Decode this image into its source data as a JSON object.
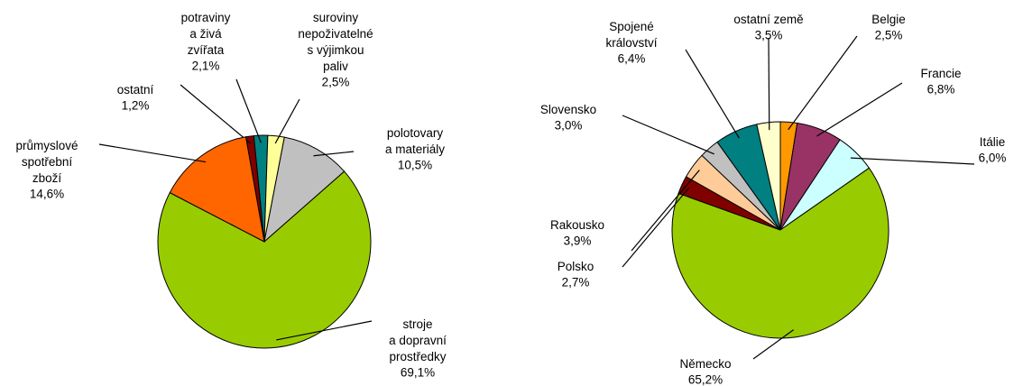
{
  "chart_data": [
    {
      "type": "pie",
      "categories": [
        "ostatní",
        "potraviny\na živá\nzvířata",
        "suroviny\nnepoživatelné\ns výjimkou\npaliv",
        "polotovary\na materiály",
        "stroje\na dopravní\nprostředky",
        "průmyslové\nspotřební\nzboží"
      ],
      "values": [
        1.2,
        2.1,
        2.5,
        10.5,
        69.1,
        14.6
      ],
      "value_labels": [
        "1,2%",
        "2,1%",
        "2,5%",
        "10,5%",
        "69,1%",
        "14,6%"
      ],
      "colors": [
        "#800000",
        "#008080",
        "#ffff99",
        "#c0c0c0",
        "#99cc00",
        "#ff6600"
      ]
    },
    {
      "type": "pie",
      "categories": [
        "Belgie",
        "Francie",
        "Itálie",
        "Německo",
        "Polsko",
        "Rakousko",
        "Slovensko",
        "Spojené\nkrálovství",
        "ostatní země"
      ],
      "values": [
        2.5,
        6.8,
        6.0,
        65.2,
        2.7,
        3.9,
        3.0,
        6.4,
        3.5
      ],
      "value_labels": [
        "2,5%",
        "6,8%",
        "6,0%",
        "65,2%",
        "2,7%",
        "3,9%",
        "3,0%",
        "6,4%",
        "3,5%"
      ],
      "colors": [
        "#ff9900",
        "#993366",
        "#ccffff",
        "#99cc00",
        "#800000",
        "#ffcc99",
        "#c0c0c0",
        "#008080",
        "#ffffcc"
      ]
    }
  ]
}
